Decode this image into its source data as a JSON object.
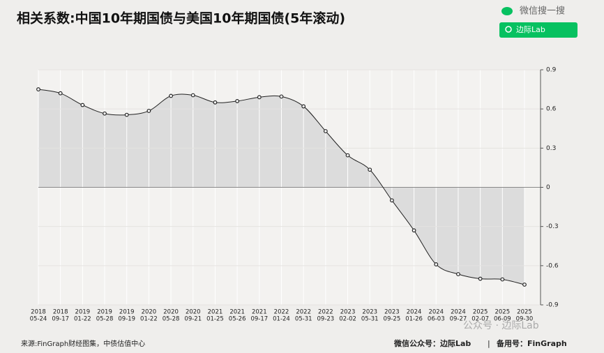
{
  "chart_data": {
    "type": "line",
    "title": "相关系数:中国10年期国债与美国10年期国债(5年滚动)",
    "categories": [
      [
        "2018",
        "05-24"
      ],
      [
        "2018",
        "09-17"
      ],
      [
        "2019",
        "01-22"
      ],
      [
        "2019",
        "05-28"
      ],
      [
        "2019",
        "09-19"
      ],
      [
        "2020",
        "01-22"
      ],
      [
        "2020",
        "05-28"
      ],
      [
        "2020",
        "09-21"
      ],
      [
        "2021",
        "01-25"
      ],
      [
        "2021",
        "05-26"
      ],
      [
        "2021",
        "09-17"
      ],
      [
        "2022",
        "01-24"
      ],
      [
        "2022",
        "05-31"
      ],
      [
        "2022",
        "09-23"
      ],
      [
        "2023",
        "02-02"
      ],
      [
        "2023",
        "05-31"
      ],
      [
        "2023",
        "09-25"
      ],
      [
        "2024",
        "01-26"
      ],
      [
        "2024",
        "06-03"
      ],
      [
        "2024",
        "09-27"
      ],
      [
        "2025",
        "02-07"
      ],
      [
        "2025",
        "06-09"
      ],
      [
        "2025",
        "09-30"
      ]
    ],
    "series": [
      {
        "color": "#222222",
        "values": [
          0.75,
          0.72,
          0.63,
          0.565,
          0.555,
          0.585,
          0.7,
          0.705,
          0.65,
          0.66,
          0.69,
          0.695,
          0.62,
          0.43,
          0.245,
          0.135,
          -0.1,
          -0.33,
          -0.59,
          -0.665,
          -0.7,
          -0.705,
          -0.745
        ]
      }
    ],
    "area_color": "#dcdcdc",
    "ylim": [
      -0.9,
      0.9
    ],
    "yticks": [
      0.9,
      0.6,
      0.3,
      0,
      -0.3,
      -0.6,
      -0.9
    ],
    "grid": true
  },
  "search": {
    "label": "微信搜一搜",
    "query": "边际Lab"
  },
  "watermark": "公众号 · 边际Lab",
  "source": "来源:FinGraph财经图集，中债估值中心",
  "footer": {
    "account": "微信公众号：边际Lab",
    "separator": "|",
    "backup": "备用号：FinGraph"
  }
}
